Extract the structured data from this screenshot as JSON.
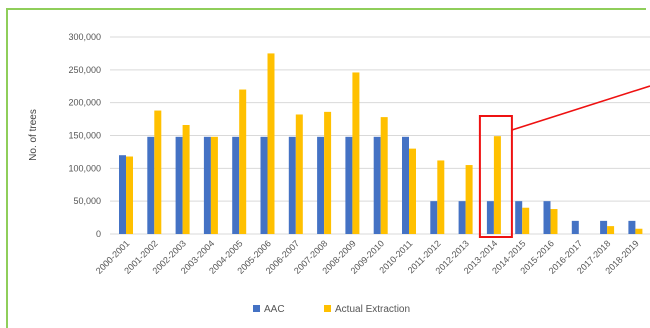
{
  "colors": {
    "aac": "#4472c4",
    "extraction": "#ffc000",
    "highlight": "#ee1111",
    "frame": "#8fce5a",
    "grid": "#d9d9d9"
  },
  "chart_data": {
    "type": "bar",
    "ylabel": "No. of trees",
    "ylim": [
      0,
      300000
    ],
    "yticks": [
      "0",
      "50,000",
      "100,000",
      "150,000",
      "200,000",
      "250,000",
      "300,000"
    ],
    "ytick_values": [
      0,
      50000,
      100000,
      150000,
      200000,
      250000,
      300000
    ],
    "grid": true,
    "legend_position": "bottom",
    "categories": [
      "2000-2001",
      "2001-2002",
      "2002-2003",
      "2003-2004",
      "2004-2005",
      "2005-2006",
      "2006-2007",
      "2007-2008",
      "2008-2009",
      "2009-2010",
      "2010-2011",
      "2011-2012",
      "2012-2013",
      "2013-2014",
      "2014-2015",
      "2015-2016",
      "2016-2017",
      "2017-2018",
      "2018-2019"
    ],
    "series": [
      {
        "name": "AAC",
        "values": [
          120000,
          148000,
          148000,
          148000,
          148000,
          148000,
          148000,
          148000,
          148000,
          148000,
          148000,
          50000,
          50000,
          50000,
          50000,
          50000,
          20000,
          20000,
          20000
        ]
      },
      {
        "name": "Actual Extraction",
        "values": [
          118000,
          188000,
          166000,
          148000,
          220000,
          275000,
          182000,
          186000,
          246000,
          178000,
          130000,
          112000,
          105000,
          149000,
          40000,
          38000,
          0,
          12000,
          8000
        ]
      }
    ],
    "highlight_category": "2013-2014"
  }
}
